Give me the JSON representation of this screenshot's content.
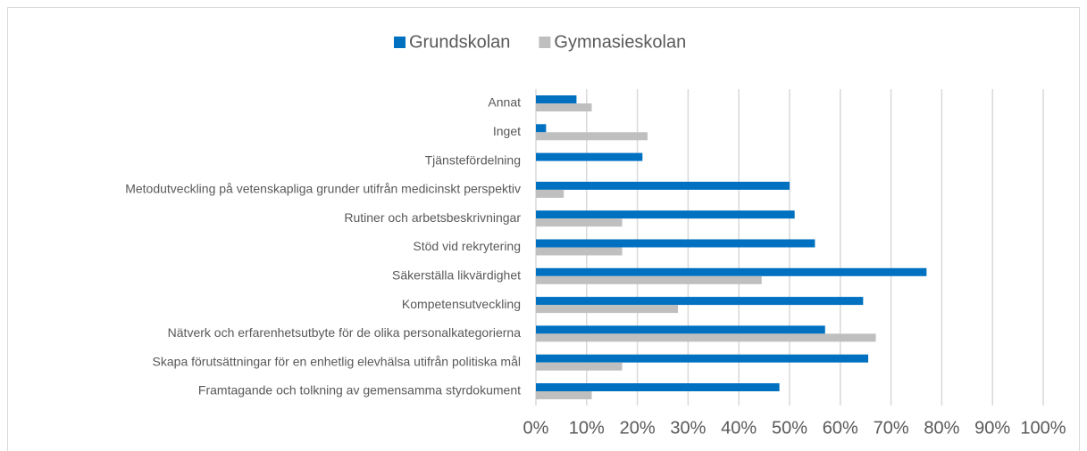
{
  "chart_data": {
    "type": "hbar",
    "categories": [
      "Annat",
      "Inget",
      "Tjänstefördelning",
      "Metodutveckling på vetenskapliga grunder utifrån medicinskt perspektiv",
      "Rutiner och arbetsbeskrivningar",
      "Stöd vid rekrytering",
      "Säkerställa likvärdighet",
      "Kompetensutveckling",
      "Nätverk och erfarenhetsutbyte för de olika personalkategorierna",
      "Skapa förutsättningar för en enhetlig elevhälsa utifrån politiska mål",
      "Framtagande och tolkning av gemensamma styrdokument"
    ],
    "series": [
      {
        "name": "Grundskolan",
        "color": "#0070c0",
        "values": [
          8,
          2,
          21,
          50,
          51,
          55,
          77,
          64.5,
          57,
          65.5,
          48
        ]
      },
      {
        "name": "Gymnasieskolan",
        "color": "#bfbfbf",
        "values": [
          11,
          22,
          0,
          5.5,
          17,
          17,
          44.5,
          28,
          67,
          17,
          11
        ]
      }
    ],
    "xlim": [
      0,
      100
    ],
    "xticks": [
      {
        "value": 0,
        "label": "0%"
      },
      {
        "value": 10,
        "label": "10%"
      },
      {
        "value": 20,
        "label": "20%"
      },
      {
        "value": 30,
        "label": "30%"
      },
      {
        "value": 40,
        "label": "40%"
      },
      {
        "value": 50,
        "label": "50%"
      },
      {
        "value": 60,
        "label": "60%"
      },
      {
        "value": 70,
        "label": "70%"
      },
      {
        "value": 80,
        "label": "80%"
      },
      {
        "value": 90,
        "label": "90%"
      },
      {
        "value": 100,
        "label": "100%"
      }
    ],
    "grid": true,
    "legend": "top"
  }
}
